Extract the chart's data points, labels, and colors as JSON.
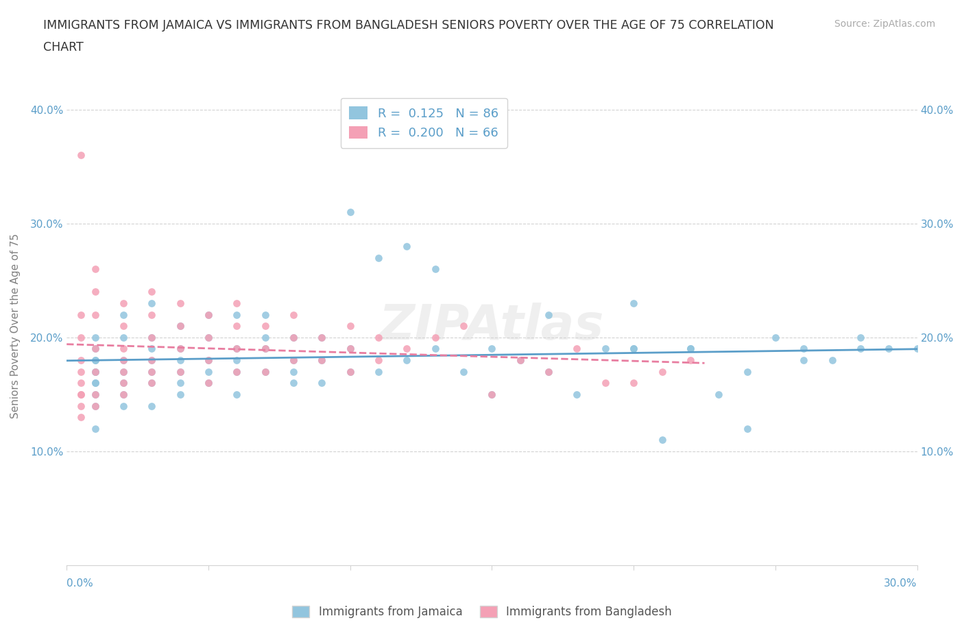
{
  "title_line1": "IMMIGRANTS FROM JAMAICA VS IMMIGRANTS FROM BANGLADESH SENIORS POVERTY OVER THE AGE OF 75 CORRELATION",
  "title_line2": "CHART",
  "source": "Source: ZipAtlas.com",
  "ylabel": "Seniors Poverty Over the Age of 75",
  "xlim": [
    0.0,
    0.3
  ],
  "ylim": [
    0.0,
    0.42
  ],
  "yticks": [
    0.0,
    0.1,
    0.2,
    0.3,
    0.4
  ],
  "ytick_labels": [
    "",
    "10.0%",
    "20.0%",
    "30.0%",
    "40.0%"
  ],
  "r_jamaica": 0.125,
  "n_jamaica": 86,
  "r_bangladesh": 0.2,
  "n_bangladesh": 66,
  "color_jamaica": "#92C5DE",
  "color_bangladesh": "#F4A0B5",
  "line_color_jamaica": "#5B9EC9",
  "line_color_bangladesh": "#E87DA0",
  "jamaica_x": [
    0.01,
    0.01,
    0.01,
    0.01,
    0.01,
    0.01,
    0.01,
    0.01,
    0.01,
    0.01,
    0.01,
    0.02,
    0.02,
    0.02,
    0.02,
    0.02,
    0.02,
    0.02,
    0.03,
    0.03,
    0.03,
    0.03,
    0.03,
    0.03,
    0.03,
    0.04,
    0.04,
    0.04,
    0.04,
    0.04,
    0.04,
    0.05,
    0.05,
    0.05,
    0.05,
    0.05,
    0.06,
    0.06,
    0.06,
    0.06,
    0.06,
    0.07,
    0.07,
    0.07,
    0.07,
    0.08,
    0.08,
    0.08,
    0.08,
    0.09,
    0.09,
    0.09,
    0.1,
    0.1,
    0.1,
    0.11,
    0.11,
    0.12,
    0.12,
    0.13,
    0.13,
    0.14,
    0.15,
    0.15,
    0.16,
    0.17,
    0.17,
    0.18,
    0.19,
    0.2,
    0.2,
    0.21,
    0.22,
    0.23,
    0.24,
    0.25,
    0.26,
    0.27,
    0.28,
    0.29,
    0.2,
    0.22,
    0.24,
    0.26,
    0.28,
    0.3
  ],
  "jamaica_y": [
    0.14,
    0.16,
    0.17,
    0.18,
    0.18,
    0.19,
    0.2,
    0.15,
    0.16,
    0.17,
    0.12,
    0.16,
    0.17,
    0.18,
    0.14,
    0.15,
    0.2,
    0.22,
    0.17,
    0.18,
    0.19,
    0.14,
    0.16,
    0.2,
    0.23,
    0.15,
    0.18,
    0.19,
    0.21,
    0.16,
    0.17,
    0.16,
    0.18,
    0.2,
    0.22,
    0.17,
    0.15,
    0.18,
    0.19,
    0.22,
    0.17,
    0.17,
    0.19,
    0.2,
    0.22,
    0.16,
    0.18,
    0.2,
    0.17,
    0.16,
    0.18,
    0.2,
    0.17,
    0.19,
    0.31,
    0.17,
    0.27,
    0.18,
    0.28,
    0.19,
    0.26,
    0.17,
    0.15,
    0.19,
    0.18,
    0.22,
    0.17,
    0.15,
    0.19,
    0.23,
    0.19,
    0.11,
    0.19,
    0.15,
    0.17,
    0.2,
    0.19,
    0.18,
    0.2,
    0.19,
    0.19,
    0.19,
    0.12,
    0.18,
    0.19,
    0.19
  ],
  "bangladesh_x": [
    0.005,
    0.005,
    0.005,
    0.005,
    0.005,
    0.005,
    0.005,
    0.005,
    0.005,
    0.005,
    0.01,
    0.01,
    0.01,
    0.01,
    0.01,
    0.01,
    0.01,
    0.02,
    0.02,
    0.02,
    0.02,
    0.02,
    0.02,
    0.02,
    0.03,
    0.03,
    0.03,
    0.03,
    0.03,
    0.03,
    0.04,
    0.04,
    0.04,
    0.04,
    0.05,
    0.05,
    0.05,
    0.05,
    0.06,
    0.06,
    0.06,
    0.06,
    0.07,
    0.07,
    0.07,
    0.08,
    0.08,
    0.08,
    0.09,
    0.09,
    0.1,
    0.1,
    0.1,
    0.11,
    0.11,
    0.12,
    0.13,
    0.14,
    0.15,
    0.16,
    0.17,
    0.18,
    0.19,
    0.2,
    0.21,
    0.22
  ],
  "bangladesh_y": [
    0.14,
    0.16,
    0.17,
    0.18,
    0.2,
    0.22,
    0.15,
    0.36,
    0.13,
    0.15,
    0.15,
    0.17,
    0.19,
    0.22,
    0.24,
    0.26,
    0.14,
    0.15,
    0.17,
    0.19,
    0.21,
    0.23,
    0.16,
    0.18,
    0.16,
    0.18,
    0.2,
    0.22,
    0.24,
    0.17,
    0.17,
    0.19,
    0.21,
    0.23,
    0.16,
    0.18,
    0.2,
    0.22,
    0.17,
    0.19,
    0.21,
    0.23,
    0.17,
    0.19,
    0.21,
    0.18,
    0.2,
    0.22,
    0.18,
    0.2,
    0.17,
    0.19,
    0.21,
    0.18,
    0.2,
    0.19,
    0.2,
    0.21,
    0.15,
    0.18,
    0.17,
    0.19,
    0.16,
    0.16,
    0.17,
    0.18
  ]
}
